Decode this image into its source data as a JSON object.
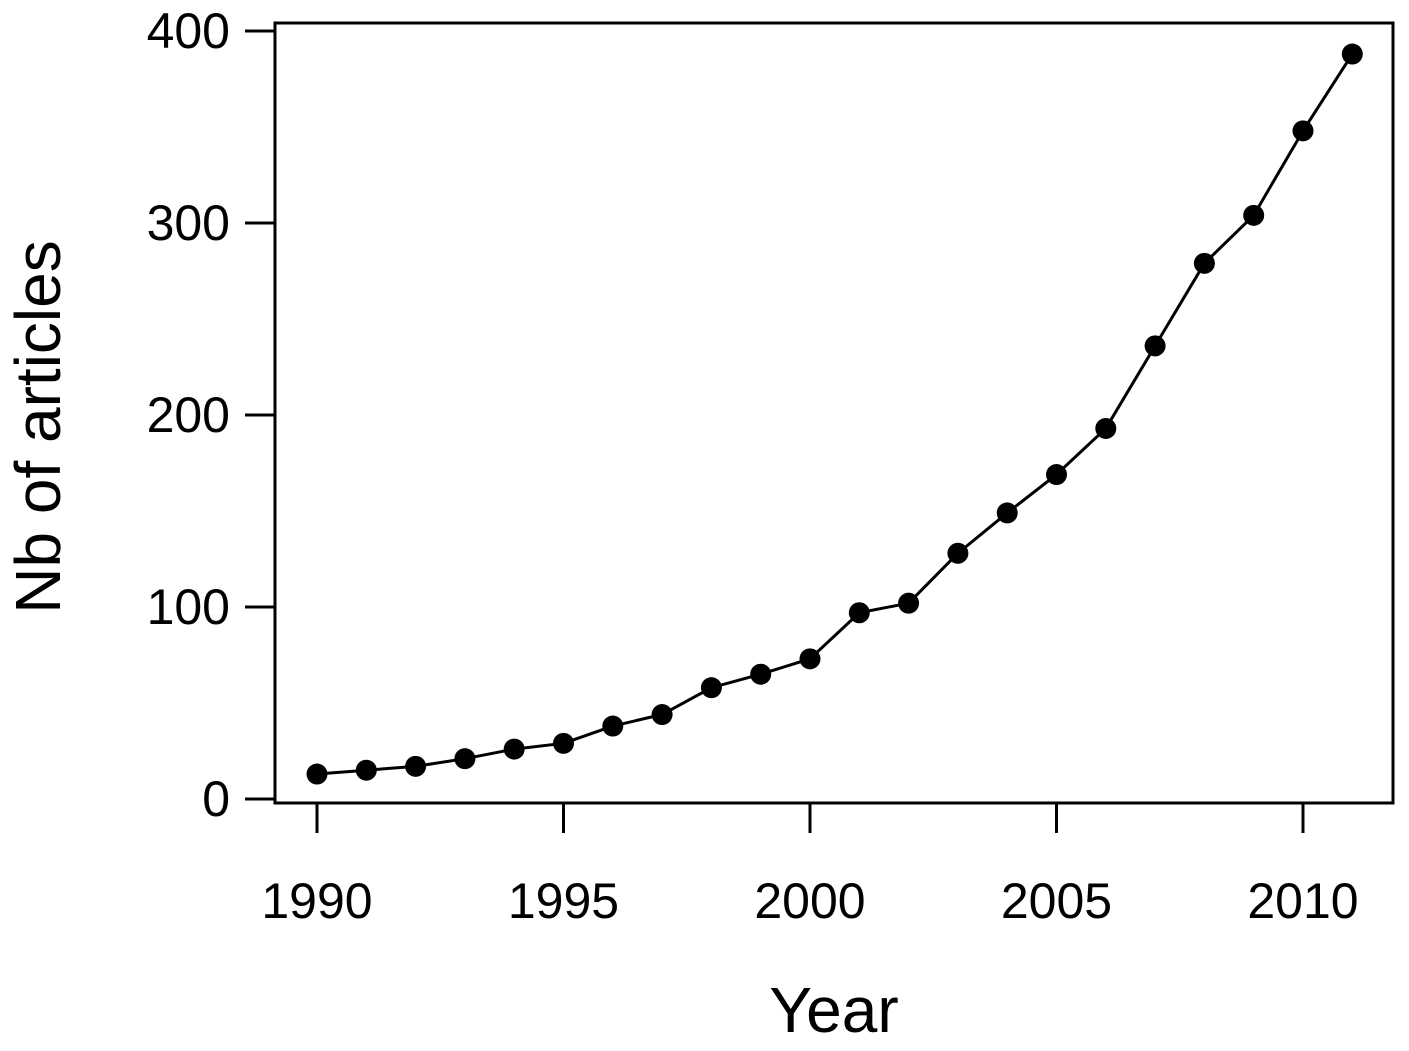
{
  "figure": {
    "background_color": "#ffffff",
    "foreground_color": "#000000"
  },
  "chart_data": {
    "type": "line",
    "title": "",
    "xlabel": "Year",
    "ylabel": "Nb of articles",
    "x": [
      1990,
      1991,
      1992,
      1993,
      1994,
      1995,
      1996,
      1997,
      1998,
      1999,
      2000,
      2001,
      2002,
      2003,
      2004,
      2005,
      2006,
      2007,
      2008,
      2009,
      2010,
      2011
    ],
    "series": [
      {
        "name": "Nb of articles",
        "values": [
          13,
          15,
          17,
          21,
          26,
          29,
          38,
          44,
          58,
          65,
          73,
          97,
          102,
          128,
          149,
          169,
          193,
          236,
          279,
          304,
          348,
          388
        ]
      }
    ],
    "x_ticks": [
      1990,
      1995,
      2000,
      2005,
      2010
    ],
    "y_ticks": [
      0,
      100,
      200,
      300,
      400
    ],
    "xlim": [
      1989.15,
      2011.85
    ],
    "ylim": [
      0,
      400
    ],
    "grid": false,
    "legend_position": "none",
    "marker": "filled-circle",
    "line_color": "#000000",
    "marker_color": "#000000",
    "box": true
  }
}
